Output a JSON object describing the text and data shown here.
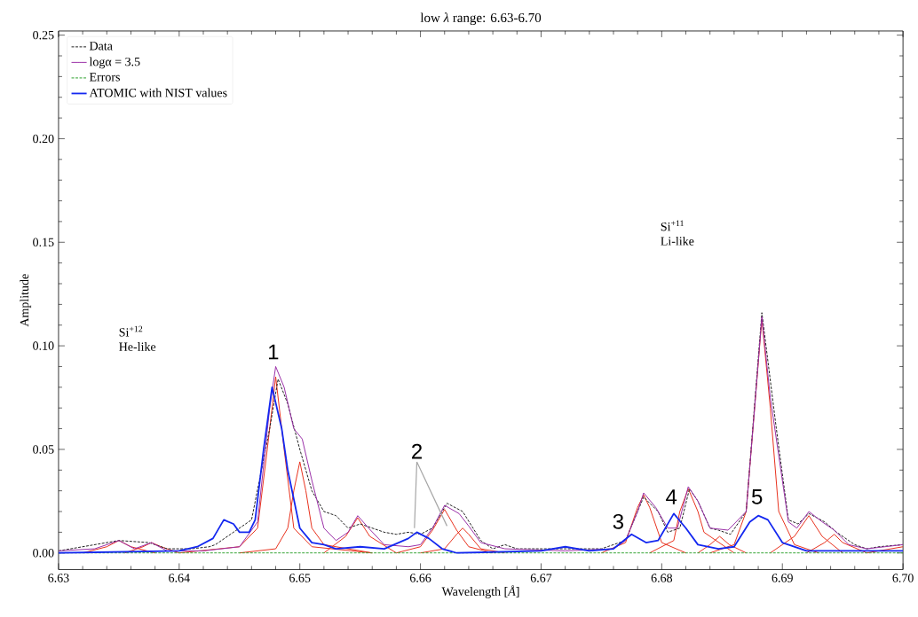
{
  "chart_data": {
    "type": "line",
    "title": "low *λ* range: 6.63-6.70",
    "xlabel": "Wavelength [*Å*]",
    "ylabel": "Amplitude",
    "xlim": [
      6.63,
      6.7
    ],
    "ylim": [
      -0.008,
      0.252
    ],
    "xticks": [
      6.63,
      6.64,
      6.65,
      6.66,
      6.67,
      6.68,
      6.69,
      {
        "value": 6.7,
        "label": "6.70"
      }
    ],
    "yticks": [
      {
        "value": 0,
        "label": "0.00"
      },
      0.05,
      {
        "value": 0.1,
        "label": "0.10"
      },
      0.15,
      {
        "value": 0.2,
        "label": "0.20"
      },
      0.25
    ],
    "legend": "top left",
    "series": [
      {
        "name": "Data",
        "color": "#222222",
        "line_style": "dashed",
        "x": [
          6.63,
          6.635,
          6.6375,
          6.639,
          6.641,
          6.6425,
          6.643,
          6.6445,
          6.646,
          6.6475,
          6.6482,
          6.649,
          6.65,
          6.651,
          6.652,
          6.653,
          6.654,
          6.655,
          6.656,
          6.657,
          6.658,
          6.659,
          6.66,
          6.661,
          6.6622,
          6.6635,
          6.665,
          6.666,
          6.667,
          6.668,
          6.671,
          6.673,
          6.675,
          6.677,
          6.6785,
          6.6797,
          6.6805,
          6.6815,
          6.6823,
          6.683,
          6.684,
          6.6847,
          6.6857,
          6.687,
          6.6883,
          6.6895,
          6.6905,
          6.6913,
          6.6922,
          6.6935,
          6.6945,
          6.696,
          6.697,
          6.698,
          6.7
        ],
        "values": [
          0.001,
          0.006,
          0.005,
          0.002,
          0.002,
          0.003,
          0.004,
          0.01,
          0.016,
          0.06,
          0.084,
          0.072,
          0.05,
          0.03,
          0.02,
          0.018,
          0.012,
          0.014,
          0.012,
          0.01,
          0.009,
          0.01,
          0.009,
          0.012,
          0.024,
          0.02,
          0.006,
          0.002,
          0.004,
          0.002,
          0.002,
          0.002,
          0.002,
          0.006,
          0.027,
          0.02,
          0.01,
          0.012,
          0.031,
          0.025,
          0.012,
          0.011,
          0.009,
          0.02,
          0.116,
          0.06,
          0.016,
          0.014,
          0.019,
          0.015,
          0.01,
          0.004,
          0.002,
          0.003,
          0.004
        ]
      },
      {
        "name": "logα = 3.5",
        "color": "#9b30a8",
        "x": [
          6.63,
          6.633,
          6.635,
          6.6363,
          6.6377,
          6.639,
          6.642,
          6.645,
          6.6465,
          6.6475,
          6.648,
          6.6487,
          6.6495,
          6.6502,
          6.651,
          6.652,
          6.653,
          6.654,
          6.6548,
          6.6557,
          6.657,
          6.659,
          6.66,
          6.661,
          6.662,
          6.6632,
          6.664,
          6.665,
          6.667,
          6.672,
          6.676,
          6.677,
          6.678,
          6.6785,
          6.6795,
          6.6805,
          6.6813,
          6.6822,
          6.683,
          6.684,
          6.6855,
          6.687,
          6.6877,
          6.6883,
          6.689,
          6.6905,
          6.6912,
          6.6922,
          6.6933,
          6.6943,
          6.6955,
          6.697,
          6.7
        ],
        "values": [
          0.001,
          0.002,
          0.006,
          0.002,
          0.005,
          0.001,
          0.001,
          0.003,
          0.015,
          0.07,
          0.09,
          0.08,
          0.06,
          0.055,
          0.035,
          0.012,
          0.006,
          0.01,
          0.018,
          0.012,
          0.004,
          0.003,
          0.004,
          0.012,
          0.023,
          0.019,
          0.013,
          0.005,
          0.002,
          0.001,
          0.002,
          0.006,
          0.02,
          0.029,
          0.022,
          0.012,
          0.012,
          0.032,
          0.025,
          0.012,
          0.011,
          0.02,
          0.07,
          0.114,
          0.075,
          0.015,
          0.012,
          0.02,
          0.015,
          0.011,
          0.004,
          0.002,
          0.004
        ]
      },
      {
        "name": "Errors",
        "color": "#2ca02c",
        "line_style": "dashed",
        "x": [
          6.63,
          6.7
        ],
        "values": [
          0,
          0
        ]
      },
      {
        "name": "ATOMIC with NIST values",
        "color": "#1428f0",
        "x": [
          6.63,
          6.64,
          6.6415,
          6.6428,
          6.6437,
          6.6445,
          6.645,
          6.6458,
          6.6463,
          6.647,
          6.6477,
          6.6485,
          6.649,
          6.65,
          6.651,
          6.652,
          6.653,
          6.655,
          6.657,
          6.659,
          6.6597,
          6.6607,
          6.6618,
          6.663,
          6.67,
          6.672,
          6.674,
          6.676,
          6.6775,
          6.6787,
          6.6797,
          6.681,
          6.682,
          6.683,
          6.6847,
          6.686,
          6.6873,
          6.688,
          6.6888,
          6.69,
          6.692,
          6.7
        ],
        "values": [
          0,
          0.001,
          0.003,
          0.007,
          0.016,
          0.014,
          0.01,
          0.01,
          0.016,
          0.05,
          0.08,
          0.06,
          0.04,
          0.012,
          0.005,
          0.004,
          0.002,
          0.003,
          0.002,
          0.007,
          0.01,
          0.007,
          0.002,
          0,
          0.001,
          0.003,
          0.001,
          0.002,
          0.009,
          0.005,
          0.006,
          0.019,
          0.012,
          0.004,
          0.002,
          0.003,
          0.015,
          0.018,
          0.016,
          0.005,
          0.001,
          0.001
        ]
      },
      {
        "color": "#e8321e",
        "x": [
          6.632,
          6.634,
          6.635,
          6.636,
          6.638,
          null,
          6.6355,
          6.637,
          6.6377,
          6.6385,
          6.64,
          null,
          6.64,
          6.645,
          6.6465,
          6.6473,
          6.648,
          6.6487,
          6.6495,
          6.651,
          6.656,
          null,
          6.645,
          6.648,
          6.649,
          6.6495,
          6.65,
          6.6505,
          6.651,
          6.652,
          6.656,
          null,
          6.652,
          6.6538,
          6.6548,
          6.6558,
          6.658,
          null,
          6.658,
          6.66,
          6.661,
          6.662,
          6.663,
          6.664,
          6.666,
          null,
          6.66,
          6.662,
          6.663,
          6.6635,
          6.664,
          6.665,
          6.667,
          null,
          6.675,
          6.677,
          6.678,
          6.6785,
          6.679,
          6.68,
          6.682,
          null,
          6.679,
          6.681,
          6.6815,
          6.6822,
          6.683,
          6.6835,
          6.686,
          null,
          6.683,
          6.684,
          6.6848,
          6.6856,
          6.687,
          null,
          6.684,
          6.686,
          6.687,
          6.6877,
          6.6883,
          6.689,
          6.6897,
          6.691,
          6.693,
          null,
          6.689,
          6.691,
          6.6922,
          6.6933,
          6.695,
          null,
          6.692,
          6.6935,
          6.6943,
          6.695,
          6.697,
          null,
          6.697,
          6.699,
          6.7
        ],
        "values": [
          0,
          0.003,
          0.006,
          0.003,
          0,
          null,
          0,
          0.003,
          0.005,
          0.003,
          0,
          null,
          0,
          0.003,
          0.012,
          0.05,
          0.085,
          0.05,
          0.012,
          0.003,
          0,
          null,
          0,
          0.002,
          0.012,
          0.03,
          0.044,
          0.03,
          0.012,
          0.004,
          0,
          null,
          0,
          0.008,
          0.017,
          0.008,
          0,
          null,
          0,
          0.003,
          0.011,
          0.021,
          0.011,
          0.003,
          0,
          null,
          0,
          0.002,
          0.009,
          0.012,
          0.009,
          0.002,
          0,
          null,
          0,
          0.005,
          0.022,
          0.028,
          0.022,
          0.005,
          0,
          null,
          0,
          0.006,
          0.02,
          0.031,
          0.02,
          0.01,
          0,
          null,
          0,
          0.004,
          0.008,
          0.004,
          0,
          null,
          0,
          0.004,
          0.02,
          0.07,
          0.113,
          0.07,
          0.02,
          0.004,
          0,
          null,
          0,
          0.008,
          0.018,
          0.008,
          0,
          null,
          0,
          0.005,
          0.009,
          0.005,
          0,
          null,
          0,
          0.002,
          0.003
        ]
      }
    ],
    "annotations": [
      "1",
      "2",
      "3",
      "4",
      "5",
      "Si$^{+12}$",
      "He-like",
      "Si$^{+11}$",
      "Li-like"
    ]
  }
}
